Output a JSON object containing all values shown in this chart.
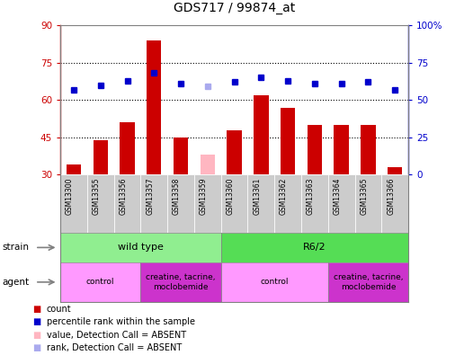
{
  "title": "GDS717 / 99874_at",
  "samples": [
    "GSM13300",
    "GSM13355",
    "GSM13356",
    "GSM13357",
    "GSM13358",
    "GSM13359",
    "GSM13360",
    "GSM13361",
    "GSM13362",
    "GSM13363",
    "GSM13364",
    "GSM13365",
    "GSM13366"
  ],
  "bar_values": [
    34,
    44,
    51,
    84,
    45,
    null,
    48,
    62,
    57,
    50,
    50,
    50,
    33
  ],
  "bar_absent_values": [
    null,
    null,
    null,
    null,
    null,
    38,
    null,
    null,
    null,
    null,
    null,
    null,
    null
  ],
  "rank_values": [
    57,
    60,
    63,
    68,
    61,
    null,
    62,
    65,
    63,
    61,
    61,
    62,
    57
  ],
  "rank_absent_values": [
    null,
    null,
    null,
    null,
    null,
    59,
    null,
    null,
    null,
    null,
    null,
    null,
    null
  ],
  "ylim_left": [
    30,
    90
  ],
  "ylim_right": [
    0,
    100
  ],
  "yticks_left": [
    30,
    45,
    60,
    75,
    90
  ],
  "yticks_right": [
    0,
    25,
    50,
    75,
    100
  ],
  "ytick_labels_right": [
    "0",
    "25",
    "50",
    "75",
    "100%"
  ],
  "hlines": [
    45,
    60,
    75
  ],
  "bar_color": "#CC0000",
  "bar_absent_color": "#FFB6C1",
  "rank_color": "#0000CC",
  "rank_absent_color": "#AAAAEE",
  "strain_wildtype_label": "wild type",
  "strain_r62_label": "R6/2",
  "agent_control_label": "control",
  "agent_drug_label": "creatine, tacrine,\nmoclobemide",
  "strain_bg_wildtype": "#90EE90",
  "strain_bg_r62": "#55DD55",
  "agent_bg_control": "#FF99FF",
  "agent_bg_drug": "#CC33CC",
  "plot_bg_color": "#FFFFFF",
  "grid_color": "#AAAAAA",
  "sample_bg_color": "#CCCCCC"
}
